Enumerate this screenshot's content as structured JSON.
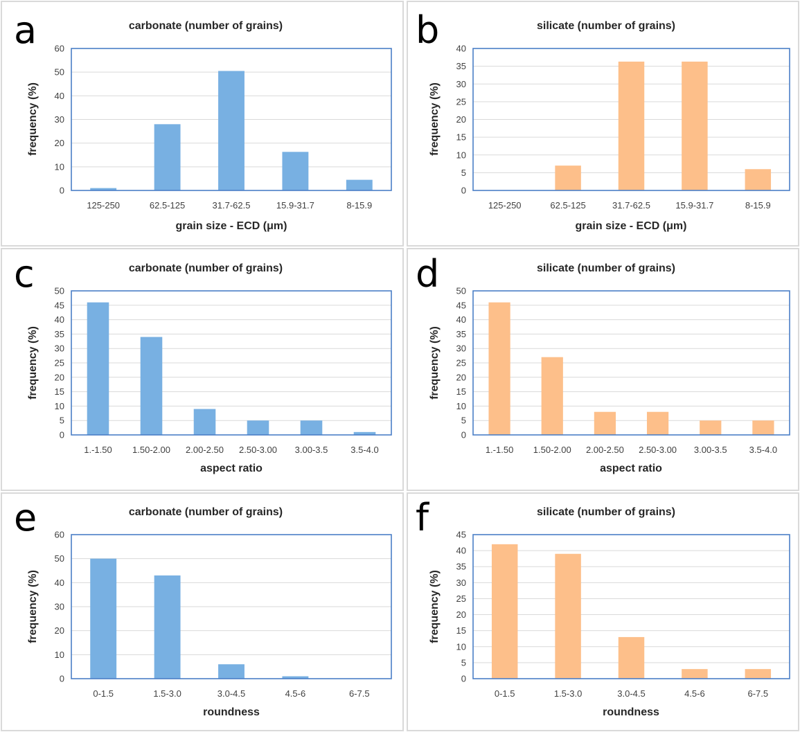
{
  "figure": {
    "colors": {
      "carbonate": "#78b0e2",
      "silicate": "#fdbf8a",
      "plot_frame": "#4a7ec6",
      "gridline": "#d9d9d9"
    }
  },
  "chart_data": [
    {
      "panel": "a",
      "type": "bar",
      "title": "carbonate (number of grains)",
      "xlabel": "grain size - ECD (μm)",
      "ylabel": "frequency (%)",
      "categories": [
        "125-250",
        "62.5-125",
        "31.7-62.5",
        "15.9-31.7",
        "8-15.9"
      ],
      "values": [
        1,
        28,
        50.5,
        16.3,
        4.5
      ],
      "ylim": [
        0,
        60
      ],
      "yticks": [
        0,
        10,
        20,
        30,
        40,
        50,
        60
      ],
      "color": "#78b0e2",
      "grid": true
    },
    {
      "panel": "b",
      "type": "bar",
      "title": "silicate (number of grains)",
      "xlabel": "grain size - ECD (μm)",
      "ylabel": "frequency (%)",
      "categories": [
        "125-250",
        "62.5-125",
        "31.7-62.5",
        "15.9-31.7",
        "8-15.9"
      ],
      "values": [
        0,
        7,
        36.3,
        36.3,
        6
      ],
      "ylim": [
        0,
        40
      ],
      "yticks": [
        0,
        5,
        10,
        15,
        20,
        25,
        30,
        35,
        40
      ],
      "color": "#fdbf8a",
      "grid": true
    },
    {
      "panel": "c",
      "type": "bar",
      "title": "carbonate (number of grains)",
      "xlabel": "aspect ratio",
      "ylabel": "frequency (%)",
      "categories": [
        "1.-1.50",
        "1.50-2.00",
        "2.00-2.50",
        "2.50-3.00",
        "3.00-3.5",
        "3.5-4.0"
      ],
      "values": [
        46,
        34,
        9,
        5,
        5,
        1
      ],
      "ylim": [
        0,
        50
      ],
      "yticks": [
        0,
        5,
        10,
        15,
        20,
        25,
        30,
        35,
        40,
        45,
        50
      ],
      "color": "#78b0e2",
      "grid": true
    },
    {
      "panel": "d",
      "type": "bar",
      "title": "silicate (number of grains)",
      "xlabel": "aspect ratio",
      "ylabel": "frequency (%)",
      "categories": [
        "1.-1.50",
        "1.50-2.00",
        "2.00-2.50",
        "2.50-3.00",
        "3.00-3.5",
        "3.5-4.0"
      ],
      "values": [
        46,
        27,
        8,
        8,
        5,
        5
      ],
      "ylim": [
        0,
        50
      ],
      "yticks": [
        0,
        5,
        10,
        15,
        20,
        25,
        30,
        35,
        40,
        45,
        50
      ],
      "color": "#fdbf8a",
      "grid": true
    },
    {
      "panel": "e",
      "type": "bar",
      "title": "carbonate (number of grains)",
      "xlabel": "roundness",
      "ylabel": "frequency (%)",
      "categories": [
        "0-1.5",
        "1.5-3.0",
        "3.0-4.5",
        "4.5-6",
        "6-7.5"
      ],
      "values": [
        50,
        43,
        6,
        1,
        0
      ],
      "ylim": [
        0,
        60
      ],
      "yticks": [
        0,
        10,
        20,
        30,
        40,
        50,
        60
      ],
      "color": "#78b0e2",
      "grid": true
    },
    {
      "panel": "f",
      "type": "bar",
      "title": "silicate (number of grains)",
      "xlabel": "roundness",
      "ylabel": "frequency (%)",
      "categories": [
        "0-1.5",
        "1.5-3.0",
        "3.0-4.5",
        "4.5-6",
        "6-7.5"
      ],
      "values": [
        42,
        39,
        13,
        3,
        3
      ],
      "ylim": [
        0,
        45
      ],
      "yticks": [
        0,
        5,
        10,
        15,
        20,
        25,
        30,
        35,
        40,
        45
      ],
      "color": "#fdbf8a",
      "grid": true
    }
  ]
}
